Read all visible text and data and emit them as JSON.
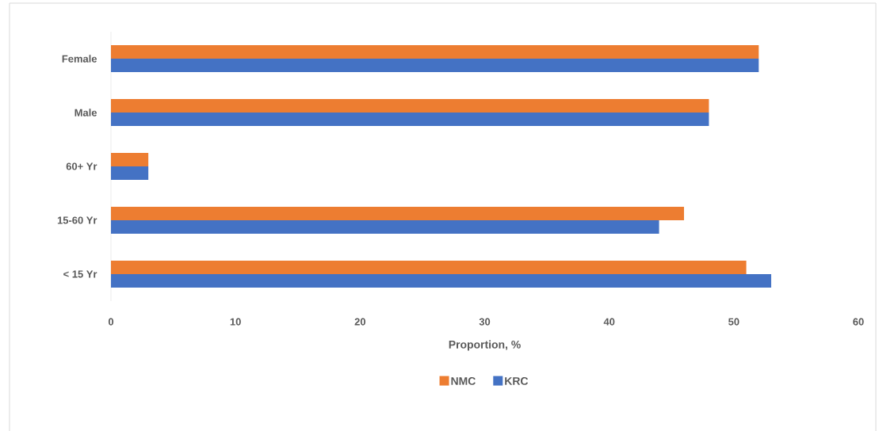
{
  "chart_data": {
    "type": "bar",
    "orientation": "horizontal",
    "xlabel": "Proportion, %",
    "categories": [
      "Female",
      "Male",
      "60+ Yr",
      "15-60 Yr",
      "< 15 Yr"
    ],
    "series": [
      {
        "name": "NMC",
        "color": "#ed7d31",
        "values": [
          52,
          48,
          3,
          46,
          51
        ]
      },
      {
        "name": "KRC",
        "color": "#4472c4",
        "values": [
          52,
          48,
          3,
          44,
          53
        ]
      }
    ],
    "xlim": [
      0,
      60
    ],
    "xticks": [
      0,
      10,
      20,
      30,
      40,
      50,
      60
    ],
    "legend": "bottom"
  }
}
